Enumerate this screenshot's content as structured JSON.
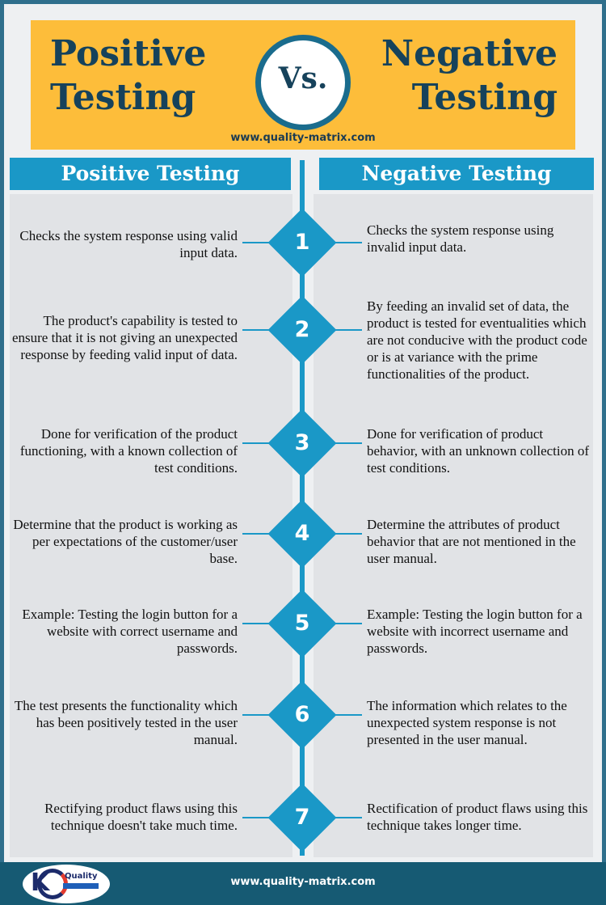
{
  "banner": {
    "title_left_line1": "Positive",
    "title_left_line2": "Testing",
    "vs": "Vs.",
    "title_right_line1": "Negative",
    "title_right_line2": "Testing",
    "url": "www.quality-matrix.com"
  },
  "headers": {
    "left": "Positive Testing",
    "right": "Negative Testing"
  },
  "rows": [
    {
      "number": "1",
      "positive": "Checks the system response using valid input data.",
      "negative": "Checks the system response using invalid input data."
    },
    {
      "number": "2",
      "positive": "The product's capability is tested to ensure that it is not giving an unexpected response by feeding valid input of data.",
      "negative": "By feeding an invalid set of data, the product is tested for eventualities which are not conducive with the product code or is at variance with the prime functionalities of the product."
    },
    {
      "number": "3",
      "positive": "Done for verification of the product functioning, with a known collection of test conditions.",
      "negative": "Done for verification of product behavior, with an unknown collection of test conditions."
    },
    {
      "number": "4",
      "positive": "Determine that the product is working as per expectations of the customer/user base.",
      "negative": "Determine the attributes of product behavior that are not mentioned in the user manual."
    },
    {
      "number": "5",
      "positive": "Example: Testing the login button for a website with correct username and passwords.",
      "negative": "Example: Testing the login button for a website with incorrect username and passwords."
    },
    {
      "number": "6",
      "positive": "The test presents the functionality which has been positively tested in the user manual.",
      "negative": "The information which relates to the unexpected system response is not presented in the user manual."
    },
    {
      "number": "7",
      "positive": "Rectifying product flaws using this technique doesn't take much time.",
      "negative": "Rectification of product flaws using this technique takes longer time."
    }
  ],
  "footer": {
    "logo_text": "Quality",
    "url": "www.quality-matrix.com"
  },
  "colors": {
    "banner": "#fdbd3a",
    "accent": "#1a98c7",
    "title": "#16425b",
    "footer": "#165a73"
  },
  "icons": [
    "quality-matrix-logo-icon"
  ]
}
